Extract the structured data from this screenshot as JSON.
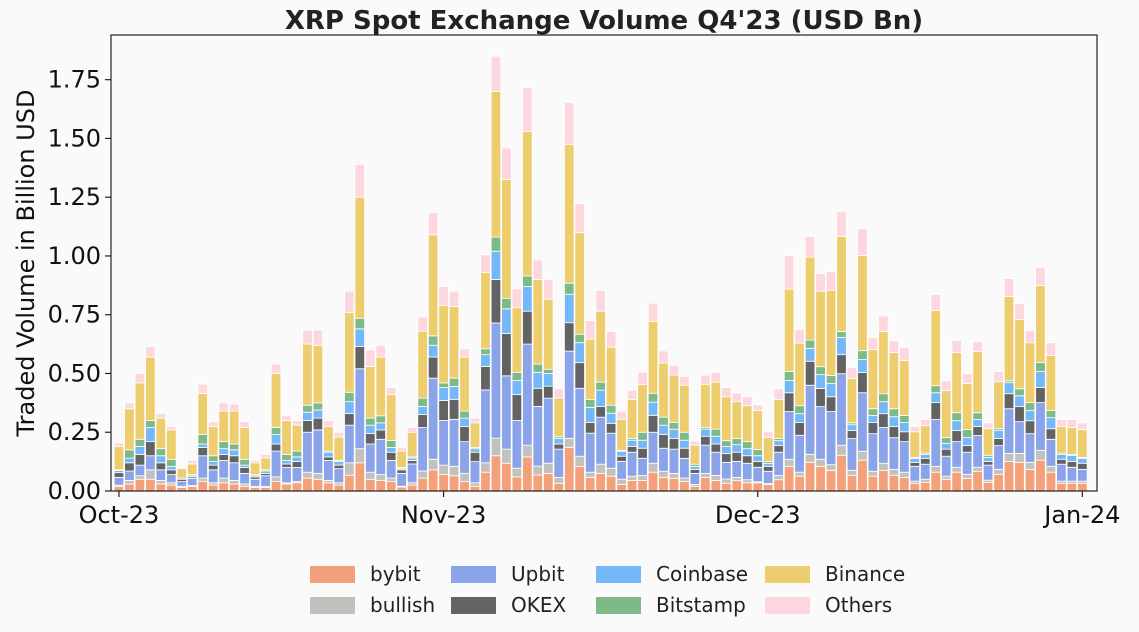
{
  "chart_data": {
    "type": "bar",
    "stacked": true,
    "title": "XRP Spot Exchange Volume Q4'23 (USD Bn)",
    "xlabel": "",
    "ylabel": "Traded Volume in Billion USD",
    "ylim": [
      0,
      1.94
    ],
    "xlim": [
      "2023-09-30",
      "2024-01-02"
    ],
    "grid": false,
    "legend_position": "bottom",
    "y_ticks": [
      0,
      0.25,
      0.5,
      0.75,
      1.0,
      1.25,
      1.5,
      1.75
    ],
    "y_tick_labels": [
      "0.00",
      "0.25",
      "0.50",
      "0.75",
      "1.00",
      "1.25",
      "1.50",
      "1.75"
    ],
    "x_ticks": [
      "2023-10-01",
      "2023-11-01",
      "2023-12-01",
      "2024-01-01"
    ],
    "x_tick_labels": [
      "Oct-23",
      "Nov-23",
      "Dec-23",
      "Jan-24"
    ],
    "x": [
      "2023-10-01",
      "2023-10-02",
      "2023-10-03",
      "2023-10-04",
      "2023-10-05",
      "2023-10-06",
      "2023-10-07",
      "2023-10-08",
      "2023-10-09",
      "2023-10-10",
      "2023-10-11",
      "2023-10-12",
      "2023-10-13",
      "2023-10-14",
      "2023-10-15",
      "2023-10-16",
      "2023-10-17",
      "2023-10-18",
      "2023-10-19",
      "2023-10-20",
      "2023-10-21",
      "2023-10-22",
      "2023-10-23",
      "2023-10-24",
      "2023-10-25",
      "2023-10-26",
      "2023-10-27",
      "2023-10-28",
      "2023-10-29",
      "2023-10-30",
      "2023-10-31",
      "2023-11-01",
      "2023-11-02",
      "2023-11-03",
      "2023-11-04",
      "2023-11-05",
      "2023-11-06",
      "2023-11-07",
      "2023-11-08",
      "2023-11-09",
      "2023-11-10",
      "2023-11-11",
      "2023-11-12",
      "2023-11-13",
      "2023-11-14",
      "2023-11-15",
      "2023-11-16",
      "2023-11-17",
      "2023-11-18",
      "2023-11-19",
      "2023-11-20",
      "2023-11-21",
      "2023-11-22",
      "2023-11-23",
      "2023-11-24",
      "2023-11-25",
      "2023-11-26",
      "2023-11-27",
      "2023-11-28",
      "2023-11-29",
      "2023-11-30",
      "2023-12-01",
      "2023-12-02",
      "2023-12-03",
      "2023-12-04",
      "2023-12-05",
      "2023-12-06",
      "2023-12-07",
      "2023-12-08",
      "2023-12-09",
      "2023-12-10",
      "2023-12-11",
      "2023-12-12",
      "2023-12-13",
      "2023-12-14",
      "2023-12-15",
      "2023-12-16",
      "2023-12-17",
      "2023-12-18",
      "2023-12-19",
      "2023-12-20",
      "2023-12-21",
      "2023-12-22",
      "2023-12-23",
      "2023-12-24",
      "2023-12-25",
      "2023-12-26",
      "2023-12-27",
      "2023-12-28",
      "2023-12-29",
      "2023-12-30",
      "2023-12-31",
      "2024-01-01"
    ],
    "series": [
      {
        "name": "bybit",
        "color": "#f4a07a",
        "values": [
          0.02,
          0.03,
          0.05,
          0.05,
          0.03,
          0.025,
          0.015,
          0.02,
          0.04,
          0.025,
          0.035,
          0.03,
          0.02,
          0.015,
          0.015,
          0.04,
          0.03,
          0.035,
          0.055,
          0.05,
          0.035,
          0.025,
          0.067,
          0.12,
          0.05,
          0.045,
          0.04,
          0.017,
          0.025,
          0.055,
          0.09,
          0.07,
          0.065,
          0.04,
          0.02,
          0.08,
          0.15,
          0.118,
          0.06,
          0.145,
          0.068,
          0.075,
          0.033,
          0.186,
          0.105,
          0.058,
          0.075,
          0.063,
          0.028,
          0.045,
          0.045,
          0.08,
          0.058,
          0.054,
          0.041,
          0.02,
          0.058,
          0.045,
          0.033,
          0.044,
          0.035,
          0.035,
          0.027,
          0.048,
          0.105,
          0.063,
          0.122,
          0.105,
          0.088,
          0.152,
          0.067,
          0.131,
          0.063,
          0.088,
          0.067,
          0.058,
          0.033,
          0.037,
          0.08,
          0.05,
          0.08,
          0.054,
          0.084,
          0.037,
          0.071,
          0.126,
          0.122,
          0.092,
          0.131,
          0.08,
          0.033,
          0.033,
          0.033
        ]
      },
      {
        "name": "bullish",
        "color": "#c1c1bd",
        "values": [
          0.005,
          0.015,
          0.015,
          0.04,
          0.015,
          0.01,
          0.005,
          0.003,
          0.015,
          0.01,
          0.02,
          0.015,
          0.01,
          0.005,
          0.005,
          0.02,
          0.005,
          0.005,
          0.025,
          0.025,
          0.01,
          0.01,
          0.053,
          0.06,
          0.03,
          0.025,
          0.015,
          0.003,
          0.01,
          0.03,
          0.045,
          0.04,
          0.04,
          0.035,
          0.015,
          0.04,
          0.075,
          0.06,
          0.037,
          0.05,
          0.038,
          0.043,
          0.025,
          0.038,
          0.043,
          0.022,
          0.039,
          0.034,
          0.022,
          0.018,
          0.021,
          0.038,
          0.026,
          0.021,
          0.014,
          0.008,
          0.017,
          0.021,
          0.018,
          0.014,
          0.013,
          0.004,
          0.005,
          0.018,
          0.03,
          0.017,
          0.034,
          0.03,
          0.024,
          0.043,
          0.021,
          0.038,
          0.021,
          0.03,
          0.025,
          0.022,
          0.009,
          0.013,
          0.025,
          0.013,
          0.021,
          0.017,
          0.017,
          0.009,
          0.021,
          0.034,
          0.038,
          0.03,
          0.042,
          0.025,
          0.009,
          0.009,
          0.009
        ]
      },
      {
        "name": "Upbit",
        "color": "#8ba4e9",
        "values": [
          0.033,
          0.04,
          0.045,
          0.06,
          0.045,
          0.035,
          0.02,
          0.03,
          0.095,
          0.055,
          0.075,
          0.075,
          0.045,
          0.03,
          0.045,
          0.11,
          0.065,
          0.06,
          0.17,
          0.185,
          0.085,
          0.06,
          0.16,
          0.34,
          0.12,
          0.15,
          0.075,
          0.055,
          0.08,
          0.185,
          0.345,
          0.19,
          0.2,
          0.135,
          0.09,
          0.31,
          0.49,
          0.312,
          0.203,
          0.43,
          0.254,
          0.277,
          0.12,
          0.371,
          0.289,
          0.166,
          0.2,
          0.149,
          0.076,
          0.102,
          0.073,
          0.132,
          0.098,
          0.103,
          0.084,
          0.047,
          0.12,
          0.099,
          0.071,
          0.068,
          0.07,
          0.062,
          0.052,
          0.099,
          0.203,
          0.157,
          0.294,
          0.224,
          0.226,
          0.304,
          0.135,
          0.249,
          0.16,
          0.152,
          0.135,
          0.13,
          0.063,
          0.064,
          0.199,
          0.085,
          0.109,
          0.094,
          0.135,
          0.064,
          0.101,
          0.19,
          0.135,
          0.122,
          0.203,
          0.115,
          0.072,
          0.059,
          0.05
        ]
      },
      {
        "name": "OKEX",
        "color": "#636363",
        "values": [
          0.02,
          0.035,
          0.045,
          0.06,
          0.03,
          0.02,
          0.01,
          0.007,
          0.035,
          0.02,
          0.025,
          0.03,
          0.025,
          0.01,
          0.01,
          0.03,
          0.015,
          0.025,
          0.05,
          0.05,
          0.015,
          0.015,
          0.05,
          0.095,
          0.045,
          0.04,
          0.035,
          0.015,
          0.015,
          0.055,
          0.09,
          0.085,
          0.085,
          0.065,
          0.04,
          0.1,
          0.185,
          0.18,
          0.11,
          0.14,
          0.077,
          0.051,
          0.022,
          0.121,
          0.109,
          0.046,
          0.046,
          0.042,
          0.022,
          0.025,
          0.043,
          0.072,
          0.059,
          0.046,
          0.043,
          0.017,
          0.038,
          0.035,
          0.037,
          0.039,
          0.032,
          0.025,
          0.021,
          0.028,
          0.08,
          0.054,
          0.102,
          0.077,
          0.063,
          0.081,
          0.034,
          0.086,
          0.047,
          0.059,
          0.047,
          0.042,
          0.017,
          0.025,
          0.072,
          0.03,
          0.047,
          0.028,
          0.038,
          0.016,
          0.03,
          0.064,
          0.064,
          0.055,
          0.064,
          0.045,
          0.021,
          0.025,
          0.026
        ]
      },
      {
        "name": "Coinbase",
        "color": "#74b8f8",
        "values": [
          0.009,
          0.02,
          0.035,
          0.06,
          0.03,
          0.015,
          0.005,
          0.005,
          0.015,
          0.015,
          0.025,
          0.025,
          0.01,
          0.005,
          0.01,
          0.04,
          0.015,
          0.02,
          0.035,
          0.035,
          0.02,
          0.015,
          0.05,
          0.075,
          0.035,
          0.03,
          0.02,
          0.005,
          0.01,
          0.035,
          0.05,
          0.055,
          0.055,
          0.035,
          0.015,
          0.05,
          0.12,
          0.105,
          0.06,
          0.105,
          0.068,
          0.054,
          0.024,
          0.121,
          0.085,
          0.064,
          0.069,
          0.043,
          0.021,
          0.026,
          0.034,
          0.056,
          0.039,
          0.039,
          0.034,
          0.013,
          0.03,
          0.033,
          0.03,
          0.032,
          0.03,
          0.024,
          0.013,
          0.021,
          0.052,
          0.038,
          0.055,
          0.059,
          0.056,
          0.073,
          0.025,
          0.055,
          0.03,
          0.051,
          0.042,
          0.039,
          0.017,
          0.017,
          0.042,
          0.025,
          0.042,
          0.034,
          0.03,
          0.017,
          0.034,
          0.047,
          0.046,
          0.043,
          0.068,
          0.047,
          0.021,
          0.026,
          0.021
        ]
      },
      {
        "name": "Bitstamp",
        "color": "#7dba87",
        "values": [
          0.003,
          0.035,
          0.03,
          0.03,
          0.03,
          0.03,
          0.0,
          0.005,
          0.04,
          0.025,
          0.03,
          0.025,
          0.025,
          0.005,
          0.005,
          0.03,
          0.025,
          0.025,
          0.03,
          0.03,
          0.005,
          0.005,
          0.04,
          0.045,
          0.03,
          0.03,
          0.03,
          0.005,
          0.005,
          0.035,
          0.04,
          0.02,
          0.035,
          0.03,
          0.005,
          0.025,
          0.06,
          0.045,
          0.035,
          0.045,
          0.035,
          0.018,
          0.007,
          0.047,
          0.036,
          0.034,
          0.034,
          0.034,
          0.004,
          0.008,
          0.034,
          0.038,
          0.034,
          0.029,
          0.034,
          0.009,
          0.008,
          0.03,
          0.025,
          0.026,
          0.03,
          0.026,
          0.007,
          0.009,
          0.038,
          0.034,
          0.035,
          0.034,
          0.034,
          0.025,
          0.008,
          0.038,
          0.029,
          0.034,
          0.034,
          0.03,
          0.003,
          0.005,
          0.03,
          0.024,
          0.034,
          0.034,
          0.029,
          0.009,
          0.008,
          0.008,
          0.03,
          0.034,
          0.038,
          0.03,
          0.005,
          0.004,
          0.004
        ]
      },
      {
        "name": "Binance",
        "color": "#edcd6e",
        "values": [
          0.1,
          0.175,
          0.24,
          0.27,
          0.13,
          0.125,
          0.04,
          0.045,
          0.175,
          0.125,
          0.13,
          0.14,
          0.135,
          0.05,
          0.05,
          0.23,
          0.145,
          0.11,
          0.26,
          0.245,
          0.105,
          0.1,
          0.34,
          0.515,
          0.22,
          0.25,
          0.195,
          0.07,
          0.105,
          0.285,
          0.43,
          0.33,
          0.305,
          0.23,
          0.105,
          0.325,
          0.62,
          0.505,
          0.275,
          0.615,
          0.36,
          0.298,
          0.164,
          0.591,
          0.433,
          0.256,
          0.302,
          0.247,
          0.132,
          0.166,
          0.204,
          0.306,
          0.23,
          0.201,
          0.2,
          0.081,
          0.183,
          0.2,
          0.187,
          0.157,
          0.153,
          0.166,
          0.102,
          0.166,
          0.351,
          0.266,
          0.353,
          0.321,
          0.363,
          0.405,
          0.188,
          0.405,
          0.252,
          0.264,
          0.239,
          0.234,
          0.11,
          0.117,
          0.32,
          0.2,
          0.256,
          0.196,
          0.26,
          0.113,
          0.2,
          0.358,
          0.294,
          0.255,
          0.328,
          0.234,
          0.113,
          0.114,
          0.118
        ]
      },
      {
        "name": "Others",
        "color": "#fdd7de",
        "values": [
          0.015,
          0.025,
          0.04,
          0.045,
          0.02,
          0.015,
          0.005,
          0.015,
          0.04,
          0.02,
          0.035,
          0.03,
          0.025,
          0.01,
          0.015,
          0.04,
          0.02,
          0.02,
          0.06,
          0.065,
          0.025,
          0.02,
          0.09,
          0.14,
          0.07,
          0.05,
          0.03,
          0.015,
          0.02,
          0.06,
          0.095,
          0.08,
          0.065,
          0.035,
          0.02,
          0.075,
          0.15,
          0.135,
          0.08,
          0.185,
          0.083,
          0.084,
          0.04,
          0.178,
          0.122,
          0.079,
          0.088,
          0.066,
          0.034,
          0.039,
          0.051,
          0.077,
          0.052,
          0.042,
          0.038,
          0.017,
          0.039,
          0.042,
          0.039,
          0.037,
          0.038,
          0.025,
          0.025,
          0.045,
          0.143,
          0.058,
          0.088,
          0.075,
          0.08,
          0.105,
          0.047,
          0.113,
          0.051,
          0.067,
          0.051,
          0.055,
          0.022,
          0.026,
          0.068,
          0.043,
          0.051,
          0.042,
          0.043,
          0.025,
          0.043,
          0.077,
          0.068,
          0.051,
          0.077,
          0.055,
          0.03,
          0.034,
          0.029
        ]
      }
    ]
  }
}
